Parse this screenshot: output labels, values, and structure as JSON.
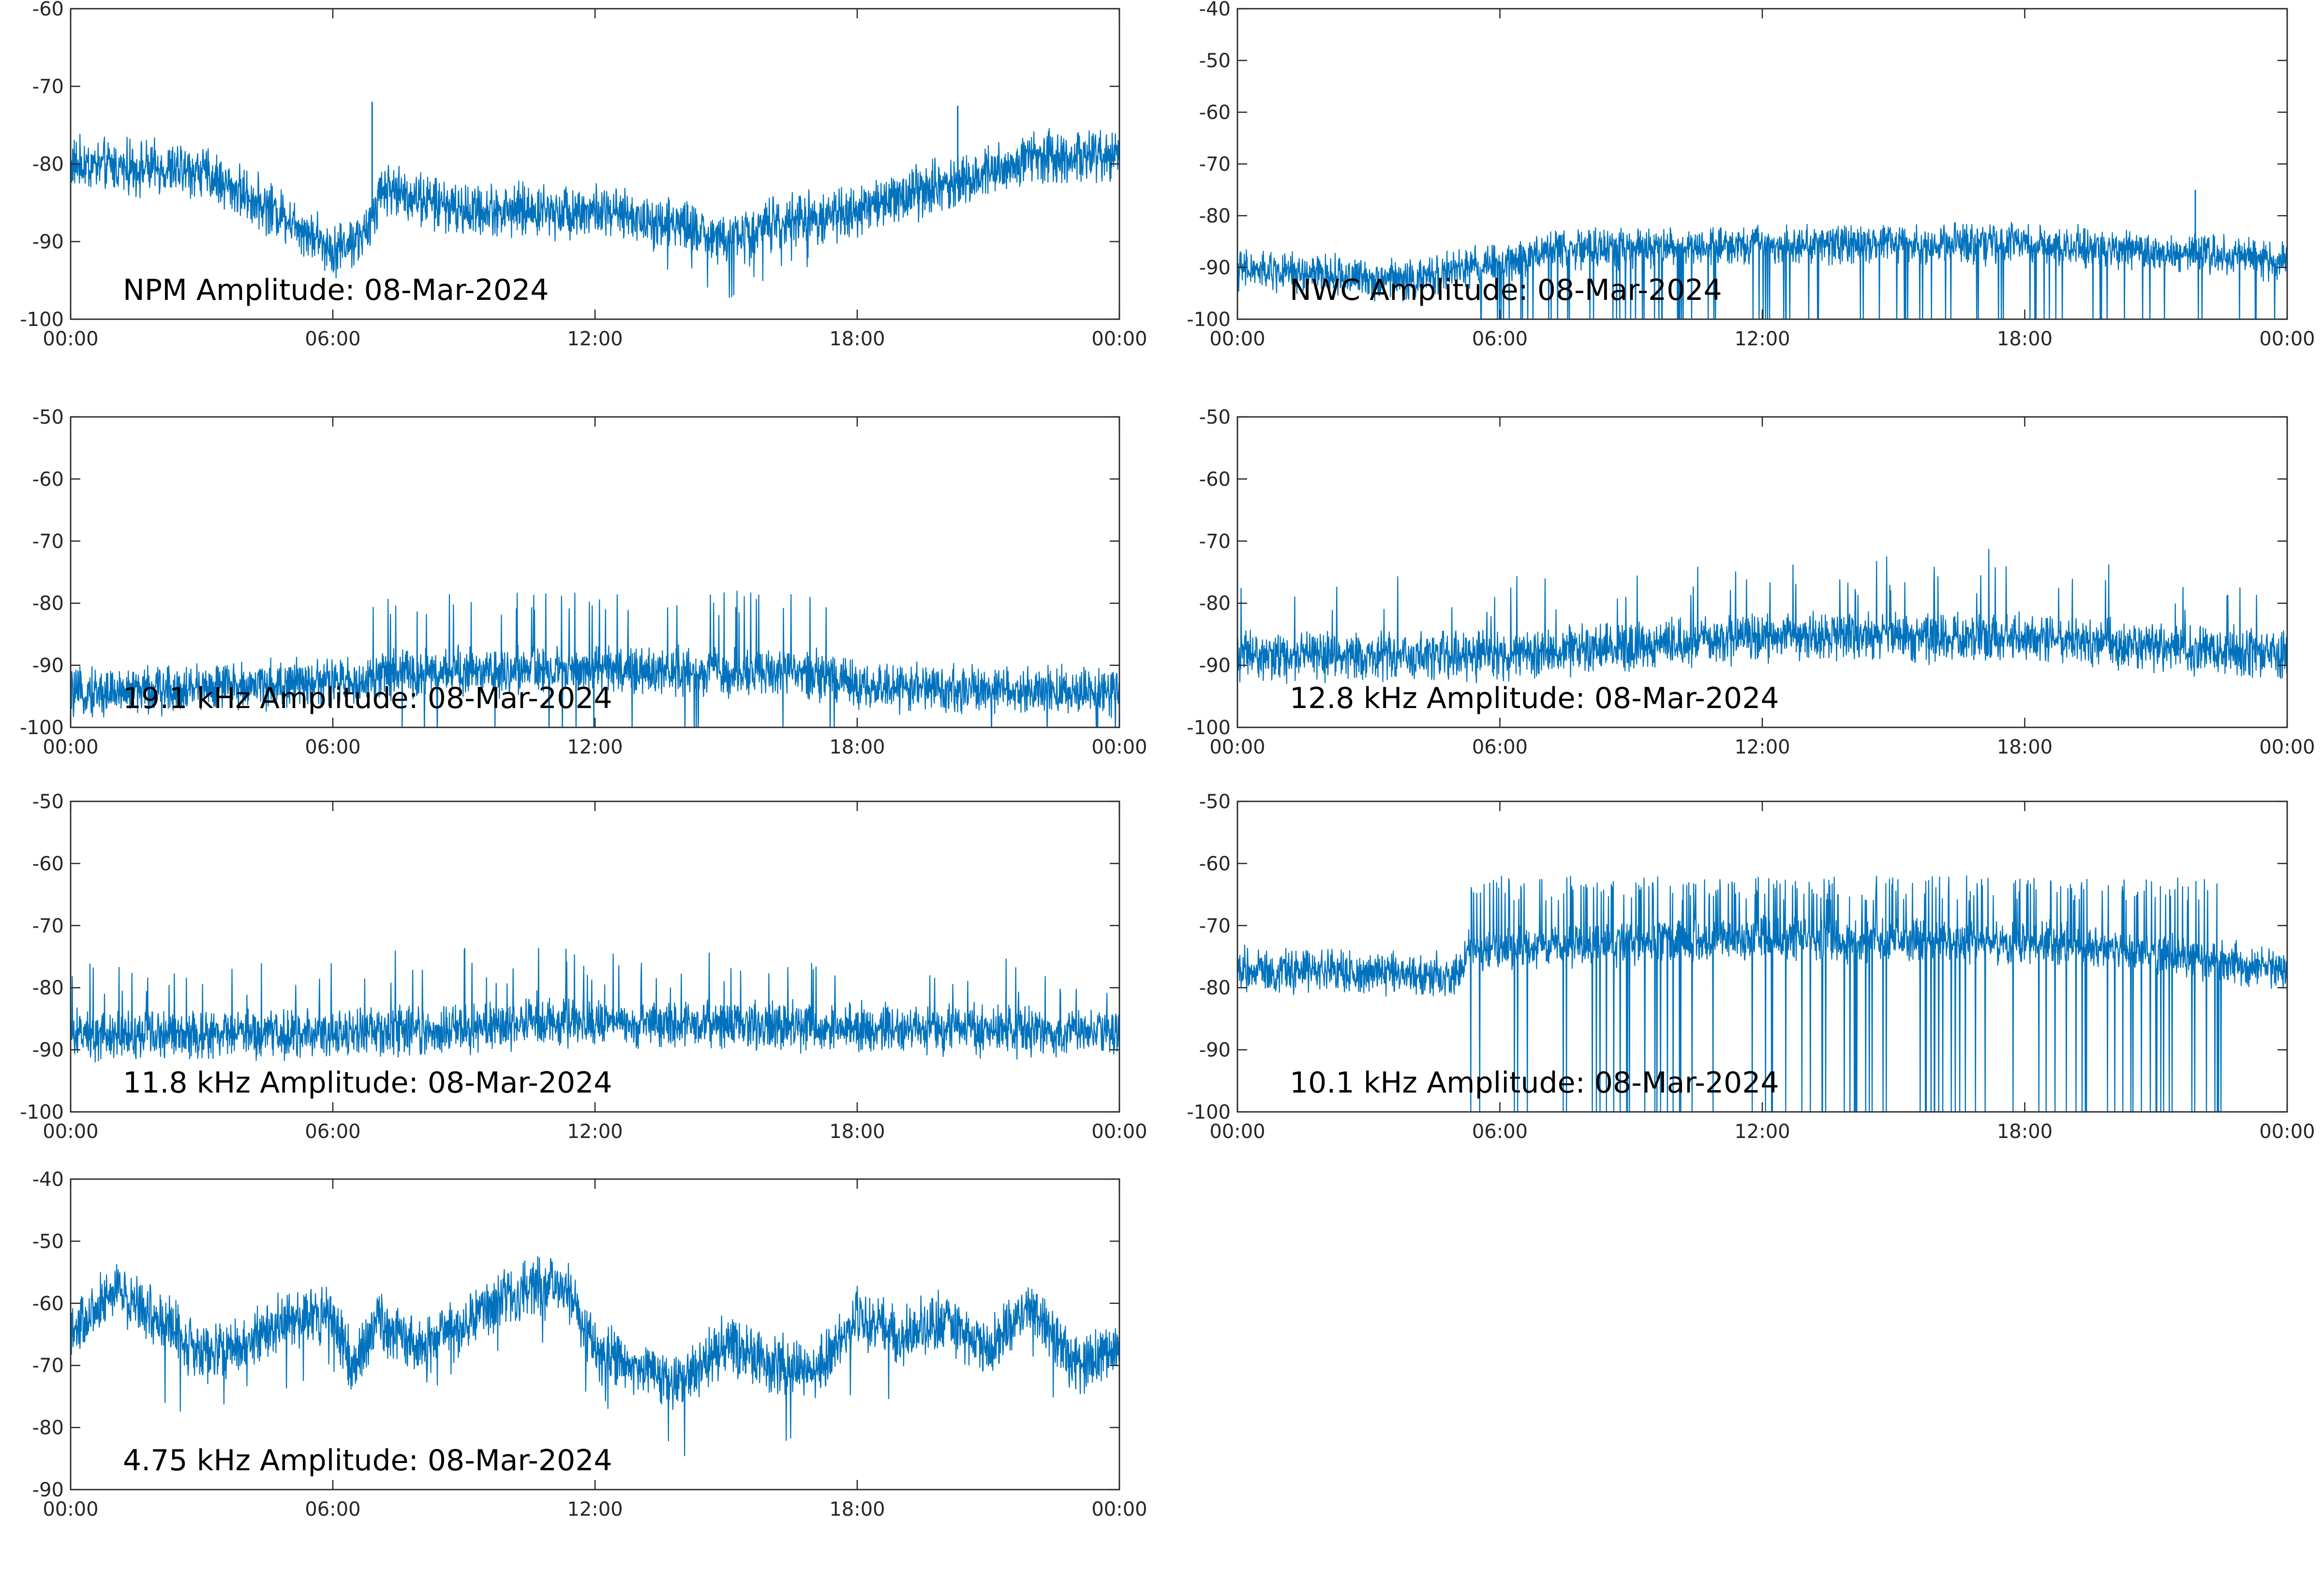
{
  "colors": {
    "series": "#0072BD",
    "axes": "#262626",
    "background": "#ffffff"
  },
  "chart_data": [
    {
      "type": "line",
      "title": "NPM Amplitude: 08-Mar-2024",
      "xlabel": "",
      "ylabel": "",
      "xlim": [
        "00:00",
        "24:00"
      ],
      "xticks": [
        "00:00",
        "06:00",
        "12:00",
        "18:00",
        "00:00"
      ],
      "ylim": [
        -100,
        -60
      ],
      "yticks": [
        "-60",
        "-70",
        "-80",
        "-90",
        "-100"
      ],
      "grid": false,
      "trend": {
        "x_hours": [
          0,
          3,
          5,
          6,
          6.8,
          7.1,
          9,
          12,
          14,
          15,
          16.5,
          18,
          21,
          22,
          24
        ],
        "y": [
          -80,
          -81,
          -87,
          -91,
          -89,
          -83,
          -86,
          -86,
          -88,
          -90,
          -87,
          -86,
          -81,
          -79,
          -79
        ]
      },
      "spread": [
        -4,
        4
      ],
      "spikes": [
        {
          "x_hours": 6.9,
          "y": -72
        },
        {
          "x_hours": 20.3,
          "y": -72.5
        }
      ]
    },
    {
      "type": "line",
      "title": "NWC Amplitude: 08-Mar-2024",
      "xlabel": "",
      "ylabel": "",
      "xlim": [
        "00:00",
        "24:00"
      ],
      "xticks": [
        "00:00",
        "06:00",
        "12:00",
        "18:00",
        "00:00"
      ],
      "ylim": [
        -100,
        -40
      ],
      "yticks": [
        "-40",
        "-50",
        "-60",
        "-70",
        "-80",
        "-90",
        "-100"
      ],
      "grid": false,
      "trend": {
        "x_hours": [
          0,
          4,
          5,
          6.5,
          7,
          12,
          18,
          22,
          24
        ],
        "y": [
          -90,
          -92,
          -90,
          -88,
          -86,
          -85,
          -85,
          -87,
          -88
        ]
      },
      "spread": [
        -5,
        4
      ],
      "dropouts_from_hours": 5.5,
      "spikes": [
        {
          "x_hours": 21.9,
          "y": -75
        }
      ]
    },
    {
      "type": "line",
      "title": "19.1 kHz Amplitude: 08-Mar-2024",
      "xlabel": "",
      "ylabel": "",
      "xlim": [
        "00:00",
        "24:00"
      ],
      "xticks": [
        "00:00",
        "06:00",
        "12:00",
        "18:00",
        "00:00"
      ],
      "ylim": [
        -100,
        -50
      ],
      "yticks": [
        "-50",
        "-60",
        "-70",
        "-80",
        "-90",
        "-100"
      ],
      "grid": false,
      "trend": {
        "x_hours": [
          0,
          6.8,
          7,
          12,
          17,
          18,
          24
        ],
        "y": [
          -94,
          -92,
          -91,
          -90,
          -91,
          -93,
          -94
        ]
      },
      "spread": [
        -5,
        4
      ],
      "bursts_to": -80,
      "bursts_hours": [
        6.9,
        17.5
      ]
    },
    {
      "type": "line",
      "title": "12.8 kHz Amplitude: 08-Mar-2024",
      "xlabel": "",
      "ylabel": "",
      "xlim": [
        "00:00",
        "24:00"
      ],
      "xticks": [
        "00:00",
        "06:00",
        "12:00",
        "18:00",
        "00:00"
      ],
      "ylim": [
        -100,
        -50
      ],
      "yticks": [
        "-50",
        "-60",
        "-70",
        "-80",
        "-90",
        "-100"
      ],
      "grid": false,
      "trend": {
        "x_hours": [
          0,
          6,
          12,
          18,
          24
        ],
        "y": [
          -88,
          -88,
          -85,
          -85,
          -88
        ]
      },
      "spread": [
        -5,
        4
      ]
    },
    {
      "type": "line",
      "title": "11.8 kHz Amplitude: 08-Mar-2024",
      "xlabel": "",
      "ylabel": "",
      "xlim": [
        "00:00",
        "24:00"
      ],
      "xticks": [
        "00:00",
        "06:00",
        "12:00",
        "18:00",
        "00:00"
      ],
      "ylim": [
        -100,
        -50
      ],
      "yticks": [
        "-50",
        "-60",
        "-70",
        "-80",
        "-90",
        "-100"
      ],
      "grid": false,
      "trend": {
        "x_hours": [
          0,
          6,
          12,
          18,
          24
        ],
        "y": [
          -87,
          -87,
          -85,
          -86,
          -87
        ]
      },
      "spread": [
        -5,
        4
      ]
    },
    {
      "type": "line",
      "title": "10.1 kHz Amplitude: 08-Mar-2024",
      "xlabel": "",
      "ylabel": "",
      "xlim": [
        "00:00",
        "24:00"
      ],
      "xticks": [
        "00:00",
        "06:00",
        "12:00",
        "18:00",
        "00:00"
      ],
      "ylim": [
        -100,
        -50
      ],
      "yticks": [
        "-50",
        "-60",
        "-70",
        "-80",
        "-90",
        "-100"
      ],
      "grid": false,
      "trend": {
        "x_hours": [
          0,
          5,
          5.3,
          12,
          19,
          24
        ],
        "y": [
          -77,
          -78,
          -74,
          -72,
          -73,
          -77
        ]
      },
      "spread": [
        -4,
        4
      ],
      "bursts_to": -64,
      "dropouts_from_hours": 5.3,
      "dropouts_until_hours": 22.5
    },
    {
      "type": "line",
      "title": "4.75 kHz Amplitude: 08-Mar-2024",
      "xlabel": "",
      "ylabel": "",
      "xlim": [
        "00:00",
        "24:00"
      ],
      "xticks": [
        "00:00",
        "06:00",
        "12:00",
        "18:00",
        "00:00"
      ],
      "ylim": [
        -90,
        -40
      ],
      "yticks": [
        "-40",
        "-50",
        "-60",
        "-70",
        "-80",
        "-90"
      ],
      "grid": false,
      "trend": {
        "x_hours": [
          0,
          1,
          2,
          3,
          4,
          5,
          6,
          6.5,
          7,
          8,
          9,
          10,
          11,
          11.5,
          12,
          13,
          14,
          15,
          16,
          17,
          18,
          19,
          20,
          21,
          22,
          23,
          24
        ],
        "y": [
          -65,
          -57,
          -62,
          -68,
          -66,
          -62,
          -62,
          -70,
          -62,
          -67,
          -63,
          -58,
          -57,
          -58,
          -67,
          -70,
          -72,
          -66,
          -69,
          -71,
          -62,
          -65,
          -62,
          -67,
          -60,
          -70,
          -66
        ]
      },
      "spread": [
        -6,
        5
      ]
    }
  ]
}
